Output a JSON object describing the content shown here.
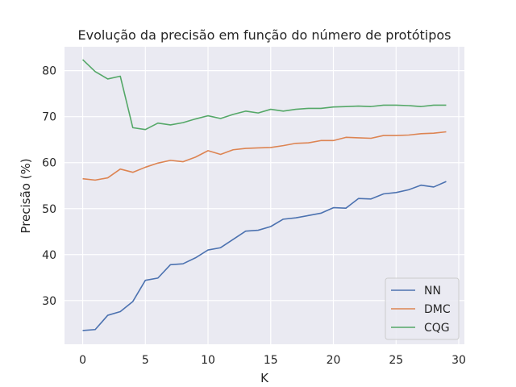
{
  "chart_data": {
    "type": "line",
    "title": "Evolução da precisão em função do número de protótipos",
    "xlabel": "K",
    "ylabel": "Precisão (%)",
    "xlim": [
      -1.45,
      30.45
    ],
    "ylim": [
      20.5,
      85.2
    ],
    "xticks": [
      0,
      5,
      10,
      15,
      20,
      25,
      30
    ],
    "yticks": [
      30,
      40,
      50,
      60,
      70,
      80
    ],
    "grid": true,
    "legend_position": "lower-right",
    "x": [
      0,
      1,
      2,
      3,
      4,
      5,
      6,
      7,
      8,
      9,
      10,
      11,
      12,
      13,
      14,
      15,
      16,
      17,
      18,
      19,
      20,
      21,
      22,
      23,
      24,
      25,
      26,
      27,
      28,
      29
    ],
    "series": [
      {
        "name": "NN",
        "color": "#4c72b0",
        "values": [
          23.5,
          23.7,
          26.8,
          27.6,
          29.8,
          34.4,
          34.9,
          37.8,
          38.0,
          39.3,
          41.0,
          41.5,
          43.3,
          45.1,
          45.3,
          46.1,
          47.7,
          48.0,
          48.5,
          49.0,
          50.2,
          50.1,
          52.2,
          52.1,
          53.2,
          53.5,
          54.1,
          55.1,
          54.7,
          55.9
        ]
      },
      {
        "name": "DMC",
        "color": "#dd8452",
        "values": [
          56.5,
          56.2,
          56.7,
          58.6,
          57.9,
          59.0,
          59.9,
          60.5,
          60.2,
          61.2,
          62.6,
          61.8,
          62.8,
          63.1,
          63.2,
          63.3,
          63.7,
          64.2,
          64.3,
          64.8,
          64.8,
          65.5,
          65.4,
          65.3,
          65.9,
          65.9,
          66.0,
          66.3,
          66.4,
          66.7
        ]
      },
      {
        "name": "CQG",
        "color": "#55a868",
        "values": [
          82.4,
          79.8,
          78.2,
          78.8,
          67.6,
          67.2,
          68.6,
          68.2,
          68.7,
          69.5,
          70.2,
          69.6,
          70.5,
          71.2,
          70.8,
          71.6,
          71.2,
          71.6,
          71.8,
          71.8,
          72.1,
          72.2,
          72.3,
          72.2,
          72.5,
          72.5,
          72.4,
          72.2,
          72.5,
          72.5
        ]
      }
    ]
  }
}
